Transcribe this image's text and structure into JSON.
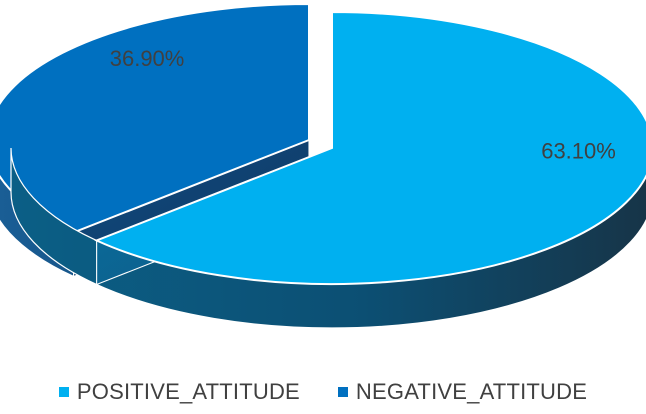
{
  "chart_data": {
    "type": "pie",
    "title": "",
    "style": "3d-exploded",
    "legend_position": "bottom",
    "slices": [
      {
        "name": "POSITIVE_ATTITUDE",
        "value": 63.1,
        "label": "63.10%",
        "color": "#00B0F0",
        "side_color": "#004E70"
      },
      {
        "name": "NEGATIVE_ATTITUDE",
        "value": 36.9,
        "label": "36.90%",
        "color": "#0070C0",
        "side_color": "#003B6B"
      }
    ]
  }
}
